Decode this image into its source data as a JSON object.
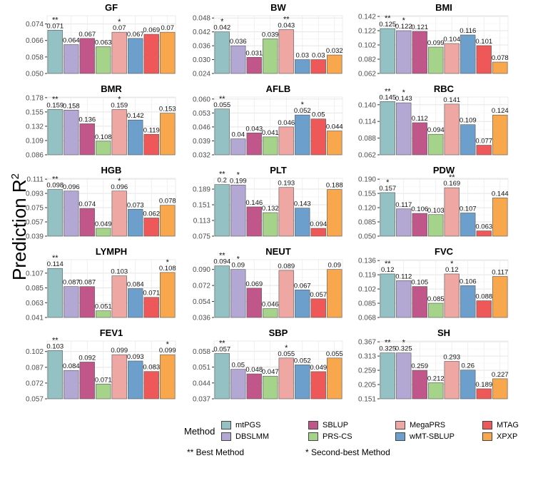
{
  "y_axis_title": "Prediction R",
  "y_axis_superscript": "2",
  "legend": {
    "title": "Method",
    "items": [
      {
        "name": "mtPGS",
        "color": "#93C1C4"
      },
      {
        "name": "DBSLMM",
        "color": "#B2A8D3"
      },
      {
        "name": "SBLUP",
        "color": "#C0568A"
      },
      {
        "name": "PRS-CS",
        "color": "#A6D38A"
      },
      {
        "name": "MegaPRS",
        "color": "#EFA7A4"
      },
      {
        "name": "wMT-SBLUP",
        "color": "#6C9FCC"
      },
      {
        "name": "MTAG",
        "color": "#EF5858"
      },
      {
        "name": "XPXP",
        "color": "#F9A74D"
      }
    ]
  },
  "notes": {
    "best": "** Best Method",
    "second": "* Second-best Method"
  },
  "chart_data": [
    {
      "type": "bar",
      "title": "GF",
      "categories": [
        "mtPGS",
        "DBSLMM",
        "SBLUP",
        "PRS-CS",
        "MegaPRS",
        "wMT-SBLUP",
        "MTAG",
        "XPXP"
      ],
      "values": [
        0.071,
        0.064,
        0.067,
        0.063,
        0.07,
        0.067,
        0.069,
        0.07
      ],
      "labels": [
        "0.071",
        "0.064",
        "0.067",
        "0.063",
        "0.07",
        "0.067",
        "0.069",
        "0.07"
      ],
      "stars": [
        "**",
        "",
        "",
        "",
        "*",
        "",
        "",
        ""
      ],
      "ylim": [
        0.05,
        0.078
      ],
      "yticks": [
        "0.050",
        "0.058",
        "0.066",
        "0.074"
      ],
      "tick_values": [
        0.05,
        0.058,
        0.066,
        0.074
      ],
      "ylabel": "Prediction R2"
    },
    {
      "type": "bar",
      "title": "BW",
      "categories": [
        "mtPGS",
        "DBSLMM",
        "SBLUP",
        "PRS-CS",
        "MegaPRS",
        "wMT-SBLUP",
        "MTAG",
        "XPXP"
      ],
      "values": [
        0.042,
        0.036,
        0.031,
        0.039,
        0.043,
        0.03,
        0.03,
        0.032
      ],
      "labels": [
        "0.042",
        "0.036",
        "0.031",
        "0.039",
        "0.043",
        "0.03",
        "0.03",
        "0.032"
      ],
      "stars": [
        "*",
        "",
        "",
        "",
        "**",
        "",
        "",
        ""
      ],
      "ylim": [
        0.024,
        0.049
      ],
      "yticks": [
        "0.024",
        "0.030",
        "0.036",
        "0.042",
        "0.048"
      ],
      "tick_values": [
        0.024,
        0.03,
        0.036,
        0.042,
        0.048
      ],
      "ylabel": "Prediction R2"
    },
    {
      "type": "bar",
      "title": "BMI",
      "categories": [
        "mtPGS",
        "DBSLMM",
        "SBLUP",
        "PRS-CS",
        "MegaPRS",
        "wMT-SBLUP",
        "MTAG",
        "XPXP"
      ],
      "values": [
        0.125,
        0.122,
        0.121,
        0.099,
        0.104,
        0.116,
        0.101,
        0.078
      ],
      "labels": [
        "0.125",
        "0.122",
        "0.121",
        "0.099",
        "0.104",
        "0.116",
        "0.101",
        "0.078"
      ],
      "stars": [
        "**",
        "*",
        "",
        "",
        "",
        "",
        "",
        ""
      ],
      "ylim": [
        0.062,
        0.143
      ],
      "yticks": [
        "0.062",
        "0.082",
        "0.102",
        "0.122",
        "0.142"
      ],
      "tick_values": [
        0.062,
        0.082,
        0.102,
        0.122,
        0.142
      ],
      "ylabel": "Prediction R2"
    },
    {
      "type": "bar",
      "title": "BMR",
      "categories": [
        "mtPGS",
        "DBSLMM",
        "SBLUP",
        "PRS-CS",
        "MegaPRS",
        "wMT-SBLUP",
        "MTAG",
        "XPXP"
      ],
      "values": [
        0.159,
        0.158,
        0.136,
        0.108,
        0.159,
        0.142,
        0.119,
        0.153
      ],
      "labels": [
        "0.159",
        "0.158",
        "0.136",
        "0.108",
        "0.159",
        "0.142",
        "0.119",
        "0.153"
      ],
      "stars": [
        "**",
        "",
        "",
        "",
        "*",
        "",
        "",
        ""
      ],
      "ylim": [
        0.086,
        0.179
      ],
      "yticks": [
        "0.086",
        "0.109",
        "0.132",
        "0.155",
        "0.178"
      ],
      "tick_values": [
        0.086,
        0.109,
        0.132,
        0.155,
        0.178
      ],
      "ylabel": "Prediction R2"
    },
    {
      "type": "bar",
      "title": "AFLB",
      "categories": [
        "mtPGS",
        "DBSLMM",
        "SBLUP",
        "PRS-CS",
        "MegaPRS",
        "wMT-SBLUP",
        "MTAG",
        "XPXP"
      ],
      "values": [
        0.055,
        0.04,
        0.043,
        0.041,
        0.046,
        0.052,
        0.05,
        0.044
      ],
      "labels": [
        "0.055",
        "0.04",
        "0.043",
        "0.041",
        "0.046",
        "0.052",
        "0.05",
        "0.044"
      ],
      "stars": [
        "**",
        "",
        "",
        "",
        "",
        "*",
        "",
        ""
      ],
      "ylim": [
        0.032,
        0.061
      ],
      "yticks": [
        "0.032",
        "0.039",
        "0.046",
        "0.053",
        "0.060"
      ],
      "tick_values": [
        0.032,
        0.039,
        0.046,
        0.053,
        0.06
      ],
      "ylabel": "Prediction R2"
    },
    {
      "type": "bar",
      "title": "RBC",
      "categories": [
        "mtPGS",
        "DBSLMM",
        "SBLUP",
        "PRS-CS",
        "MegaPRS",
        "wMT-SBLUP",
        "MTAG",
        "XPXP"
      ],
      "values": [
        0.145,
        0.143,
        0.112,
        0.094,
        0.141,
        0.109,
        0.077,
        0.124
      ],
      "labels": [
        "0.145",
        "0.143",
        "0.112",
        "0.094",
        "0.141",
        "0.109",
        "0.077",
        "0.124"
      ],
      "stars": [
        "**",
        "*",
        "",
        "",
        "",
        "",
        "",
        ""
      ],
      "ylim": [
        0.062,
        0.152
      ],
      "yticks": [
        "0.062",
        "0.088",
        "0.114",
        "0.140"
      ],
      "tick_values": [
        0.062,
        0.088,
        0.114,
        0.14
      ],
      "ylabel": "Prediction R2"
    },
    {
      "type": "bar",
      "title": "HGB",
      "categories": [
        "mtPGS",
        "DBSLMM",
        "SBLUP",
        "PRS-CS",
        "MegaPRS",
        "wMT-SBLUP",
        "MTAG",
        "XPXP"
      ],
      "values": [
        0.098,
        0.096,
        0.074,
        0.049,
        0.096,
        0.073,
        0.062,
        0.078
      ],
      "labels": [
        "0.098",
        "0.096",
        "0.074",
        "0.049",
        "0.096",
        "0.073",
        "0.062",
        "0.078"
      ],
      "stars": [
        "**",
        "",
        "",
        "",
        "*",
        "",
        "",
        ""
      ],
      "ylim": [
        0.039,
        0.112
      ],
      "yticks": [
        "0.039",
        "0.057",
        "0.075",
        "0.093",
        "0.111"
      ],
      "tick_values": [
        0.039,
        0.057,
        0.075,
        0.093,
        0.111
      ],
      "ylabel": "Prediction R2"
    },
    {
      "type": "bar",
      "title": "PLT",
      "categories": [
        "mtPGS",
        "DBSLMM",
        "SBLUP",
        "PRS-CS",
        "MegaPRS",
        "wMT-SBLUP",
        "MTAG",
        "XPXP"
      ],
      "values": [
        0.2,
        0.199,
        0.146,
        0.132,
        0.193,
        0.143,
        0.094,
        0.188
      ],
      "labels": [
        "0.2",
        "0.199",
        "0.146",
        "0.132",
        "0.193",
        "0.143",
        "0.094",
        "0.188"
      ],
      "stars": [
        "**",
        "*",
        "",
        "",
        "",
        "",
        "",
        ""
      ],
      "ylim": [
        0.075,
        0.215
      ],
      "yticks": [
        "0.075",
        "0.113",
        "0.151",
        "0.189"
      ],
      "tick_values": [
        0.075,
        0.113,
        0.151,
        0.189
      ],
      "ylabel": "Prediction R2"
    },
    {
      "type": "bar",
      "title": "PDW",
      "categories": [
        "mtPGS",
        "DBSLMM",
        "SBLUP",
        "PRS-CS",
        "MegaPRS",
        "wMT-SBLUP",
        "MTAG",
        "XPXP"
      ],
      "values": [
        0.157,
        0.117,
        0.106,
        0.103,
        0.169,
        0.107,
        0.063,
        0.144
      ],
      "labels": [
        "0.157",
        "0.117",
        "0.106",
        "0.103",
        "0.169",
        "0.107",
        "0.063",
        "0.144"
      ],
      "stars": [
        "*",
        "",
        "",
        "",
        "**",
        "",
        "",
        ""
      ],
      "ylim": [
        0.05,
        0.192
      ],
      "yticks": [
        "0.050",
        "0.085",
        "0.120",
        "0.155",
        "0.190"
      ],
      "tick_values": [
        0.05,
        0.085,
        0.12,
        0.155,
        0.19
      ],
      "ylabel": "Prediction R2"
    },
    {
      "type": "bar",
      "title": "LYMPH",
      "categories": [
        "mtPGS",
        "DBSLMM",
        "SBLUP",
        "PRS-CS",
        "MegaPRS",
        "wMT-SBLUP",
        "MTAG",
        "XPXP"
      ],
      "values": [
        0.114,
        0.087,
        0.087,
        0.051,
        0.103,
        0.084,
        0.071,
        0.108
      ],
      "labels": [
        "0.114",
        "0.087",
        "0.087",
        "0.051",
        "0.103",
        "0.084",
        "0.071",
        "0.108"
      ],
      "stars": [
        "**",
        "",
        "",
        "",
        "",
        "",
        "",
        "*"
      ],
      "ylim": [
        0.041,
        0.127
      ],
      "yticks": [
        "0.041",
        "0.063",
        "0.085",
        "0.107"
      ],
      "tick_values": [
        0.041,
        0.063,
        0.085,
        0.107
      ],
      "ylabel": "Prediction R2"
    },
    {
      "type": "bar",
      "title": "NEUT",
      "categories": [
        "mtPGS",
        "DBSLMM",
        "SBLUP",
        "PRS-CS",
        "MegaPRS",
        "wMT-SBLUP",
        "MTAG",
        "XPXP"
      ],
      "values": [
        0.094,
        0.09,
        0.069,
        0.046,
        0.089,
        0.067,
        0.057,
        0.09
      ],
      "labels": [
        "0.094",
        "0.09",
        "0.069",
        "0.046",
        "0.089",
        "0.067",
        "0.057",
        "0.09"
      ],
      "stars": [
        "**",
        "*",
        "",
        "",
        "",
        "",
        "",
        ""
      ],
      "ylim": [
        0.036,
        0.101
      ],
      "yticks": [
        "0.036",
        "0.054",
        "0.072",
        "0.090"
      ],
      "tick_values": [
        0.036,
        0.054,
        0.072,
        0.09
      ],
      "ylabel": "Prediction R2"
    },
    {
      "type": "bar",
      "title": "FVC",
      "categories": [
        "mtPGS",
        "DBSLMM",
        "SBLUP",
        "PRS-CS",
        "MegaPRS",
        "wMT-SBLUP",
        "MTAG",
        "XPXP"
      ],
      "values": [
        0.12,
        0.112,
        0.105,
        0.085,
        0.12,
        0.106,
        0.088,
        0.117
      ],
      "labels": [
        "0.12",
        "0.112",
        "0.105",
        "0.085",
        "0.12",
        "0.106",
        "0.088",
        "0.117"
      ],
      "stars": [
        "**",
        "",
        "",
        "",
        "*",
        "",
        "",
        ""
      ],
      "ylim": [
        0.068,
        0.137
      ],
      "yticks": [
        "0.068",
        "0.085",
        "0.102",
        "0.119",
        "0.136"
      ],
      "tick_values": [
        0.068,
        0.085,
        0.102,
        0.119,
        0.136
      ],
      "ylabel": "Prediction R2"
    },
    {
      "type": "bar",
      "title": "FEV1",
      "categories": [
        "mtPGS",
        "DBSLMM",
        "SBLUP",
        "PRS-CS",
        "MegaPRS",
        "wMT-SBLUP",
        "MTAG",
        "XPXP"
      ],
      "values": [
        0.103,
        0.084,
        0.092,
        0.071,
        0.099,
        0.093,
        0.083,
        0.099
      ],
      "labels": [
        "0.103",
        "0.084",
        "0.092",
        "0.071",
        "0.099",
        "0.093",
        "0.083",
        "0.099"
      ],
      "stars": [
        "**",
        "",
        "",
        "",
        "",
        "",
        "",
        "*"
      ],
      "ylim": [
        0.057,
        0.112
      ],
      "yticks": [
        "0.057",
        "0.072",
        "0.087",
        "0.102"
      ],
      "tick_values": [
        0.057,
        0.072,
        0.087,
        0.102
      ],
      "ylabel": "Prediction R2"
    },
    {
      "type": "bar",
      "title": "SBP",
      "categories": [
        "mtPGS",
        "DBSLMM",
        "SBLUP",
        "PRS-CS",
        "MegaPRS",
        "wMT-SBLUP",
        "MTAG",
        "XPXP"
      ],
      "values": [
        0.057,
        0.05,
        0.048,
        0.047,
        0.055,
        0.052,
        0.049,
        0.055
      ],
      "labels": [
        "0.057",
        "0.05",
        "0.048",
        "0.047",
        "0.055",
        "0.052",
        "0.049",
        "0.055"
      ],
      "stars": [
        "**",
        "",
        "",
        "",
        "*",
        "",
        "",
        ""
      ],
      "ylim": [
        0.037,
        0.0625
      ],
      "yticks": [
        "0.037",
        "0.044",
        "0.051",
        "0.058"
      ],
      "tick_values": [
        0.037,
        0.044,
        0.051,
        0.058
      ],
      "ylabel": "Prediction R2"
    },
    {
      "type": "bar",
      "title": "SH",
      "categories": [
        "mtPGS",
        "DBSLMM",
        "SBLUP",
        "PRS-CS",
        "MegaPRS",
        "wMT-SBLUP",
        "MTAG",
        "XPXP"
      ],
      "values": [
        0.325,
        0.325,
        0.259,
        0.212,
        0.293,
        0.26,
        0.189,
        0.227
      ],
      "labels": [
        "0.325",
        "0.325",
        "0.259",
        "0.212",
        "0.293",
        "0.26",
        "0.189",
        "0.227"
      ],
      "stars": [
        "**",
        "*",
        "",
        "",
        "",
        "",
        "",
        ""
      ],
      "ylim": [
        0.151,
        0.37
      ],
      "yticks": [
        "0.151",
        "0.205",
        "0.259",
        "0.313",
        "0.367"
      ],
      "tick_values": [
        0.151,
        0.205,
        0.259,
        0.313,
        0.367
      ],
      "ylabel": "Prediction R2"
    }
  ]
}
